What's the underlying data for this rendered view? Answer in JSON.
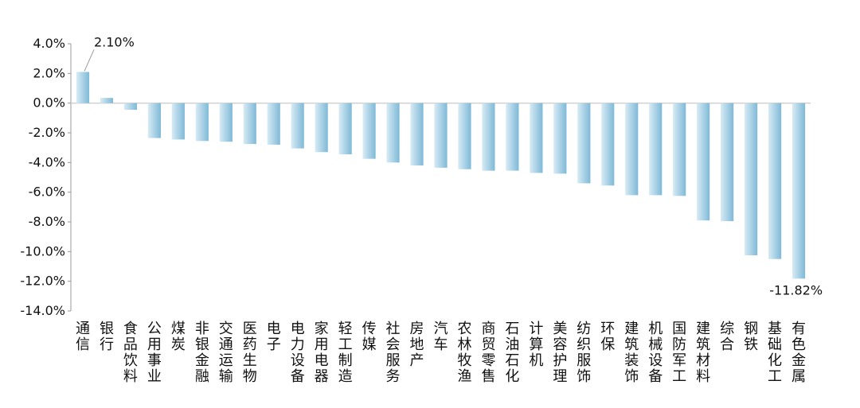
{
  "chart_data": {
    "type": "bar",
    "title": "",
    "xlabel": "",
    "ylabel": "",
    "ylim": [
      -14,
      4
    ],
    "yticks": [
      4,
      2,
      0,
      -2,
      -4,
      -6,
      -8,
      -10,
      -12,
      -14
    ],
    "ytick_labels": [
      "4.0%",
      "2.0%",
      "0.0%",
      "-2.0%",
      "-4.0%",
      "-6.0%",
      "-8.0%",
      "-10.0%",
      "-12.0%",
      "-14.0%"
    ],
    "categories": [
      "通信",
      "银行",
      "食品饮料",
      "公用事业",
      "煤炭",
      "非银金融",
      "交通运输",
      "医药生物",
      "电子",
      "电力设备",
      "家用电器",
      "轻工制造",
      "传媒",
      "社会服务",
      "房地产",
      "汽车",
      "农林牧渔",
      "商贸零售",
      "石油石化",
      "计算机",
      "美容护理",
      "纺织服饰",
      "环保",
      "建筑装饰",
      "机械设备",
      "国防军工",
      "建筑材料",
      "综合",
      "钢铁",
      "基础化工",
      "有色金属"
    ],
    "values": [
      2.1,
      0.35,
      -0.45,
      -2.35,
      -2.45,
      -2.55,
      -2.6,
      -2.75,
      -2.8,
      -3.05,
      -3.3,
      -3.45,
      -3.75,
      -4.0,
      -4.2,
      -4.35,
      -4.45,
      -4.55,
      -4.55,
      -4.7,
      -4.75,
      -5.4,
      -5.55,
      -6.2,
      -6.2,
      -6.25,
      -7.9,
      -7.95,
      -10.25,
      -10.5,
      -11.82
    ],
    "annotations": [
      {
        "category": "通信",
        "label": "2.10%"
      },
      {
        "category": "有色金属",
        "label": "-11.82%"
      }
    ],
    "colors": {
      "bar_light": "#d7ebf5",
      "bar_dark": "#7fb9d7",
      "axis": "#9a9a9a",
      "zero": "#cfcfcf",
      "text": "#111111"
    }
  }
}
